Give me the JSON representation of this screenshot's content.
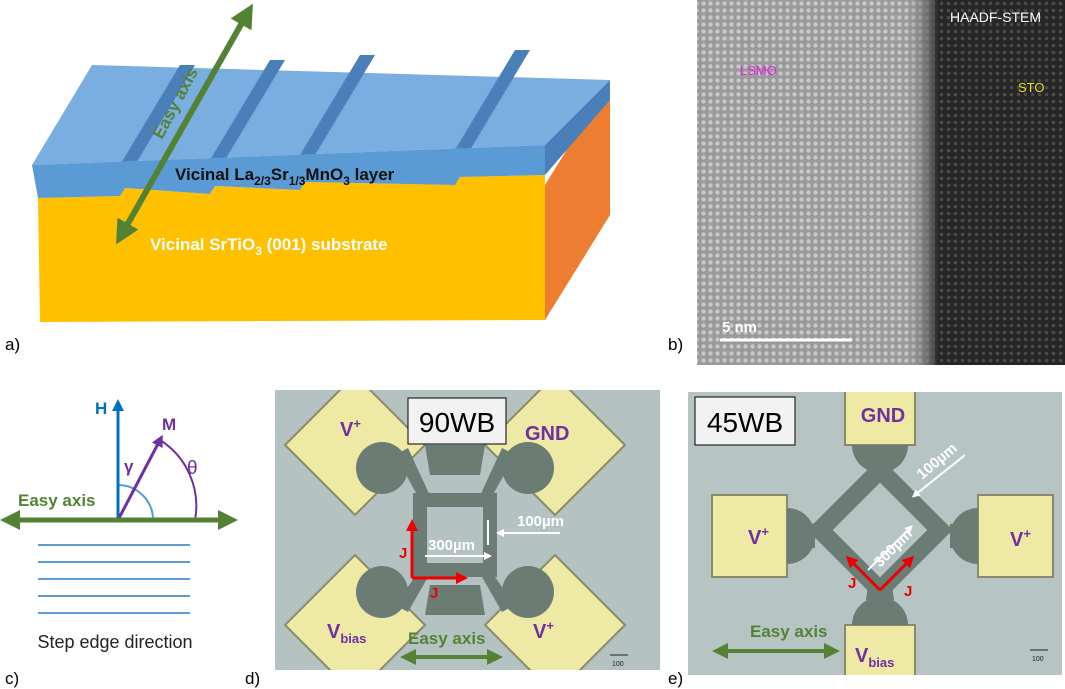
{
  "panel_labels": [
    "a)",
    "b)",
    "c)",
    "d)",
    "e)"
  ],
  "panel_a": {
    "easy_axis": "Easy axis",
    "layer": [
      "Vicinal La",
      "2/3",
      "Sr",
      "1/3",
      "MnO",
      "3",
      " layer"
    ],
    "substrate": [
      "Vicinal SrTiO",
      "3",
      " (001) substrate"
    ]
  },
  "panel_b": {
    "mode": "HAADF-STEM",
    "left": "LSMO",
    "right": "STO",
    "scale": "5 nm"
  },
  "panel_c": {
    "h": "H",
    "m": "M",
    "gamma": "γ",
    "theta": "θ",
    "easy_axis": "Easy axis",
    "caption": "Step edge direction"
  },
  "panel_d": {
    "name": "90WB",
    "pads": [
      [
        "V",
        "+"
      ],
      [
        "GND"
      ],
      [
        "V",
        "bias"
      ],
      [
        "V",
        "+"
      ]
    ],
    "width": "100µm",
    "length": "300µm",
    "current": [
      "J",
      "J"
    ],
    "easy_axis": "Easy axis",
    "scale_bar": "100"
  },
  "panel_e": {
    "name": "45WB",
    "pads": [
      [
        "GND"
      ],
      [
        "V",
        "+"
      ],
      [
        "V",
        "+"
      ],
      [
        "V",
        "bias"
      ]
    ],
    "width": "100µm",
    "length": "300µm",
    "current": [
      "J",
      "J"
    ],
    "easy_axis": "Easy axis",
    "scale_bar": "100"
  }
}
